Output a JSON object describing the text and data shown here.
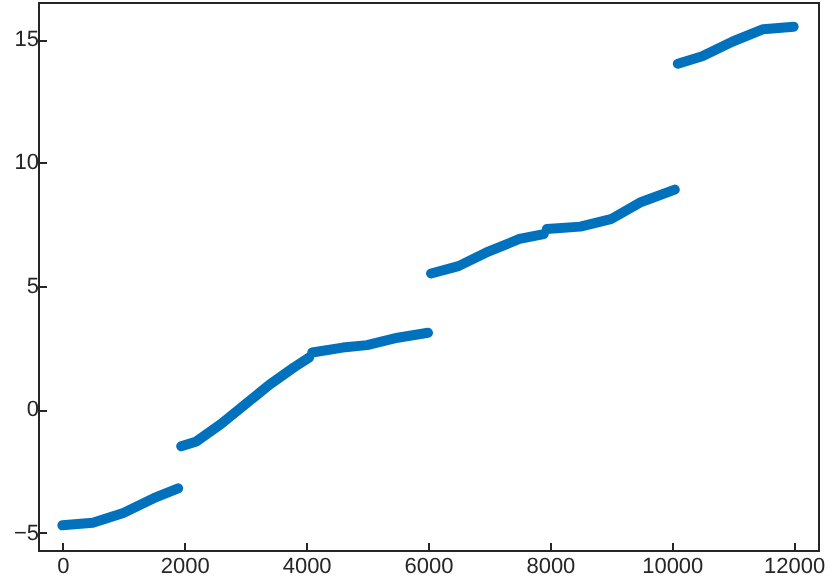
{
  "chart_data": {
    "type": "line",
    "xlim": [
      -400,
      12400
    ],
    "ylim": [
      -5.7,
      16.5
    ],
    "xticks": [
      0,
      2000,
      4000,
      6000,
      8000,
      10000,
      12000
    ],
    "yticks": [
      -5,
      0,
      5,
      10,
      15
    ],
    "grid": false,
    "line_style": "solid",
    "marker": "none",
    "series": [
      {
        "color": "#0072bd",
        "x": [
          0,
          500,
          1000,
          1500,
          1900,
          1925,
          1950,
          2200,
          2600,
          3000,
          3400,
          3800,
          4050,
          4075,
          4100,
          4600,
          5000,
          5500,
          6000,
          6025,
          6050,
          6500,
          7000,
          7500,
          7900,
          7925,
          7950,
          8500,
          9000,
          9500,
          10050,
          10075,
          10100,
          10500,
          11000,
          11500,
          12000
        ],
        "values": [
          -4.7,
          -4.6,
          -4.2,
          -3.6,
          -3.2,
          null,
          -1.5,
          -1.3,
          -0.6,
          0.2,
          1.0,
          1.7,
          2.1,
          null,
          2.3,
          2.5,
          2.6,
          2.9,
          3.1,
          null,
          5.5,
          5.8,
          6.4,
          6.9,
          7.1,
          null,
          7.3,
          7.4,
          7.7,
          8.4,
          8.9,
          null,
          14.0,
          14.3,
          14.9,
          15.4,
          15.5
        ]
      }
    ]
  }
}
